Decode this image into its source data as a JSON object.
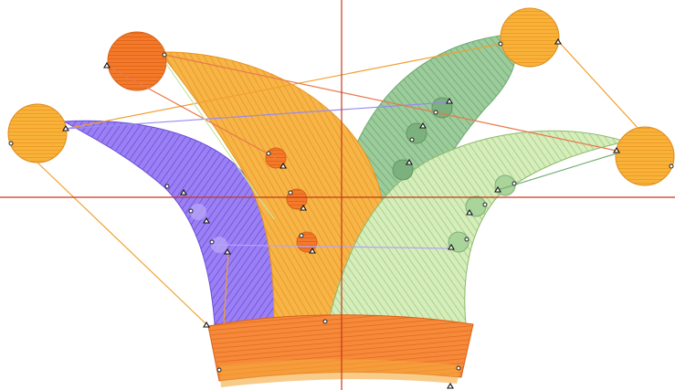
{
  "app": {
    "view": "embroidery-design-canvas"
  },
  "colors": {
    "background": "#ffffff",
    "crosshair": "#c8381a",
    "purple": "#8a6cf0",
    "purple_dark": "#6a4fd6",
    "orange": "#f5a93a",
    "orange_dark": "#e08a1e",
    "deep_orange": "#f57f25",
    "deep_orange_dark": "#d9621a",
    "green": "#8cc08e",
    "green_dark": "#5f9a62",
    "light_green": "#c8e6a8",
    "light_green_dark": "#8fba6e",
    "travel_orange": "#f0a030",
    "travel_purple": "#9a8af0",
    "travel_green": "#7cb07c",
    "travel_red": "#e9784a"
  },
  "icons": {
    "start_marker": "open-circle",
    "end_marker": "triangle"
  }
}
